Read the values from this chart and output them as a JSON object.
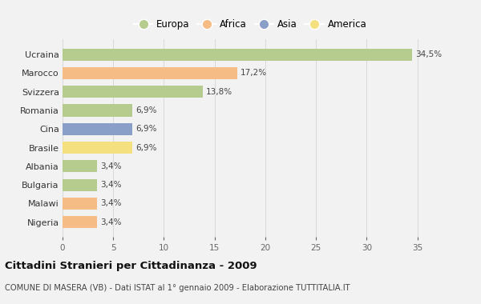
{
  "categories": [
    "Nigeria",
    "Malawi",
    "Bulgaria",
    "Albania",
    "Brasile",
    "Cina",
    "Romania",
    "Svizzera",
    "Marocco",
    "Ucraina"
  ],
  "values": [
    3.4,
    3.4,
    3.4,
    3.4,
    6.9,
    6.9,
    6.9,
    13.8,
    17.2,
    34.5
  ],
  "labels": [
    "3,4%",
    "3,4%",
    "3,4%",
    "3,4%",
    "6,9%",
    "6,9%",
    "6,9%",
    "13,8%",
    "17,2%",
    "34,5%"
  ],
  "colors": [
    "#f5bc86",
    "#f5bc86",
    "#b5cc8e",
    "#b5cc8e",
    "#f5e080",
    "#8a9fc8",
    "#b5cc8e",
    "#b5cc8e",
    "#f5bc86",
    "#b5cc8e"
  ],
  "legend": [
    {
      "label": "Europa",
      "color": "#b5cc8e"
    },
    {
      "label": "Africa",
      "color": "#f5bc86"
    },
    {
      "label": "Asia",
      "color": "#8a9fc8"
    },
    {
      "label": "America",
      "color": "#f5e080"
    }
  ],
  "xlim": [
    0,
    37
  ],
  "xticks": [
    0,
    5,
    10,
    15,
    20,
    25,
    30,
    35
  ],
  "title": "Cittadini Stranieri per Cittadinanza - 2009",
  "subtitle": "COMUNE DI MASERA (VB) - Dati ISTAT al 1° gennaio 2009 - Elaborazione TUTTITALIA.IT",
  "bg_color": "#f2f2f2",
  "plot_bg_color": "#f2f2f2"
}
